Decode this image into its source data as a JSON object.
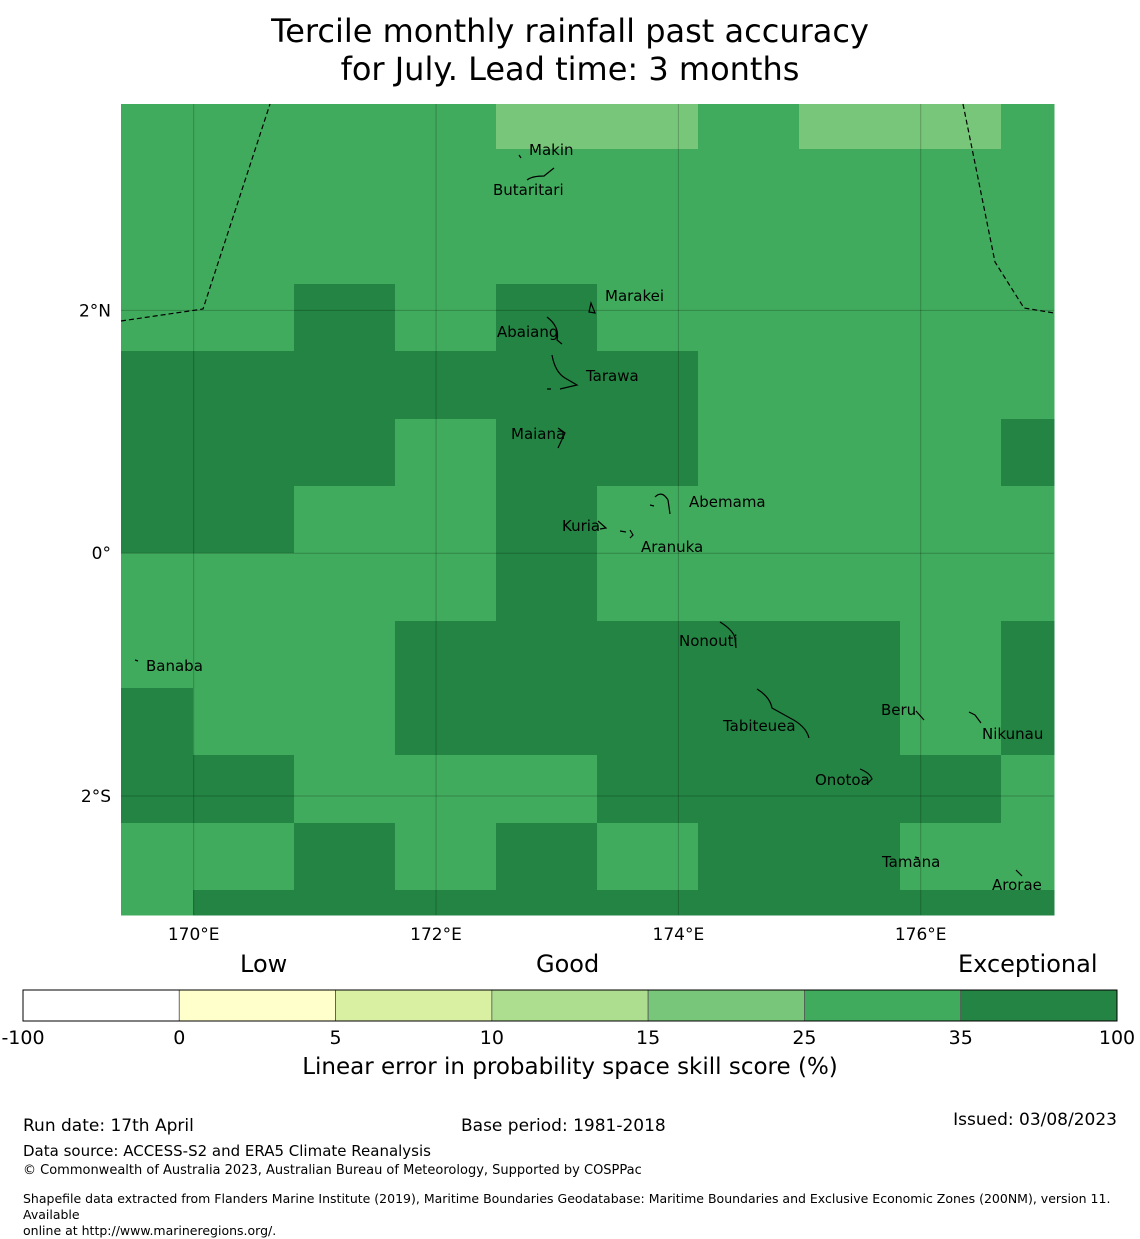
{
  "title_line1": "Tercile monthly rainfall past accuracy",
  "title_line2": "for July. Lead time: 3 months",
  "map": {
    "lon_range": [
      169.4,
      177.1
    ],
    "lat_range": [
      -2.98,
      3.7
    ],
    "lon_ticks": [
      {
        "value": 170,
        "label": "170°E"
      },
      {
        "value": 172,
        "label": "172°E"
      },
      {
        "value": 174,
        "label": "174°E"
      },
      {
        "value": 176,
        "label": "176°E"
      }
    ],
    "lat_ticks": [
      {
        "value": 2,
        "label": "2°N"
      },
      {
        "value": 0,
        "label": "0°"
      },
      {
        "value": -2,
        "label": "2°S"
      }
    ],
    "skill_grid_note": "Cell classes per row (top to bottom): 1=0-5,2=5-10,3=10-15,4=15-25,5=25-35,6=35-100",
    "skill_rows": [
      [
        5,
        5,
        5,
        5,
        4,
        4,
        5,
        4,
        4,
        5
      ],
      [
        5,
        5,
        5,
        5,
        5,
        5,
        5,
        5,
        5,
        5
      ],
      [
        5,
        5,
        5,
        5,
        5,
        5,
        5,
        5,
        5,
        5
      ],
      [
        5,
        5,
        6,
        5,
        6,
        5,
        5,
        5,
        5,
        5
      ],
      [
        6,
        6,
        6,
        6,
        6,
        6,
        5,
        5,
        5,
        5
      ],
      [
        6,
        6,
        6,
        5,
        6,
        6,
        5,
        5,
        5,
        6
      ],
      [
        6,
        6,
        5,
        5,
        6,
        5,
        5,
        5,
        5,
        5
      ],
      [
        5,
        5,
        5,
        5,
        6,
        5,
        5,
        5,
        5,
        5
      ],
      [
        5,
        5,
        5,
        6,
        6,
        6,
        6,
        6,
        5,
        6
      ],
      [
        6,
        5,
        5,
        6,
        6,
        6,
        6,
        6,
        5,
        6
      ],
      [
        6,
        6,
        5,
        5,
        5,
        6,
        6,
        6,
        6,
        5
      ],
      [
        5,
        5,
        6,
        5,
        6,
        5,
        6,
        6,
        5,
        5
      ],
      [
        5,
        6,
        6,
        6,
        6,
        6,
        6,
        6,
        6,
        6
      ]
    ],
    "islands": [
      {
        "name": "Makin",
        "lon": 173.0,
        "lat": 3.3
      },
      {
        "name": "Butaritari",
        "lon": 172.8,
        "lat": 3.05
      },
      {
        "name": "Marakei",
        "lon": 173.3,
        "lat": 2.0
      },
      {
        "name": "Abaiang",
        "lon": 172.95,
        "lat": 1.85
      },
      {
        "name": "Tarawa",
        "lon": 173.0,
        "lat": 1.42
      },
      {
        "name": "Maiana",
        "lon": 173.0,
        "lat": 0.95
      },
      {
        "name": "Abemama",
        "lon": 173.85,
        "lat": 0.4
      },
      {
        "name": "Kuria",
        "lon": 173.4,
        "lat": 0.22
      },
      {
        "name": "Aranuka",
        "lon": 173.6,
        "lat": 0.17
      },
      {
        "name": "Nonouti",
        "lon": 174.4,
        "lat": -0.65
      },
      {
        "name": "Banaba",
        "lon": 169.53,
        "lat": -0.86
      },
      {
        "name": "Beru",
        "lon": 175.98,
        "lat": -1.33
      },
      {
        "name": "Tabiteuea",
        "lon": 174.85,
        "lat": -1.4
      },
      {
        "name": "Nikunau",
        "lon": 176.45,
        "lat": -1.35
      },
      {
        "name": "Onotoa",
        "lon": 175.55,
        "lat": -1.8
      },
      {
        "name": "Tamana",
        "lon": 175.98,
        "lat": -2.5
      },
      {
        "name": "Arorae",
        "lon": 176.82,
        "lat": -2.65
      }
    ]
  },
  "colorbar": {
    "category_low": "Low",
    "category_good": "Good",
    "category_exceptional": "Exceptional",
    "bins": [
      {
        "from": "-100",
        "to": "0",
        "color": "#ffffff"
      },
      {
        "from": "0",
        "to": "5",
        "color": "#ffffcc"
      },
      {
        "from": "5",
        "to": "10",
        "color": "#d9f0a3"
      },
      {
        "from": "10",
        "to": "15",
        "color": "#addd8e"
      },
      {
        "from": "15",
        "to": "25",
        "color": "#78c679"
      },
      {
        "from": "25",
        "to": "35",
        "color": "#41ab5d"
      },
      {
        "from": "35",
        "to": "100",
        "color": "#238443"
      }
    ],
    "tick_labels": [
      "-100",
      "0",
      "5",
      "10",
      "15",
      "25",
      "35",
      "100"
    ],
    "axis_label": "Linear error in probability space skill score (%)"
  },
  "footer": {
    "run_date": "Run date: 17th April",
    "base_period": "Base period: 1981-2018",
    "issued": "Issued: 03/08/2023",
    "data_source": "Data source: ACCESS-S2 and ERA5 Climate Reanalysis",
    "copyright": "© Commonwealth of Australia 2023, Australian Bureau of Meteorology, Supported by COSPPac",
    "shapefile_line1": "Shapefile data extracted from Flanders Marine Institute (2019), Maritime Boundaries Geodatabase: Maritime Boundaries and Exclusive Economic Zones (200NM), version 11. Available",
    "shapefile_line2": "online at http://www.marineregions.org/."
  }
}
